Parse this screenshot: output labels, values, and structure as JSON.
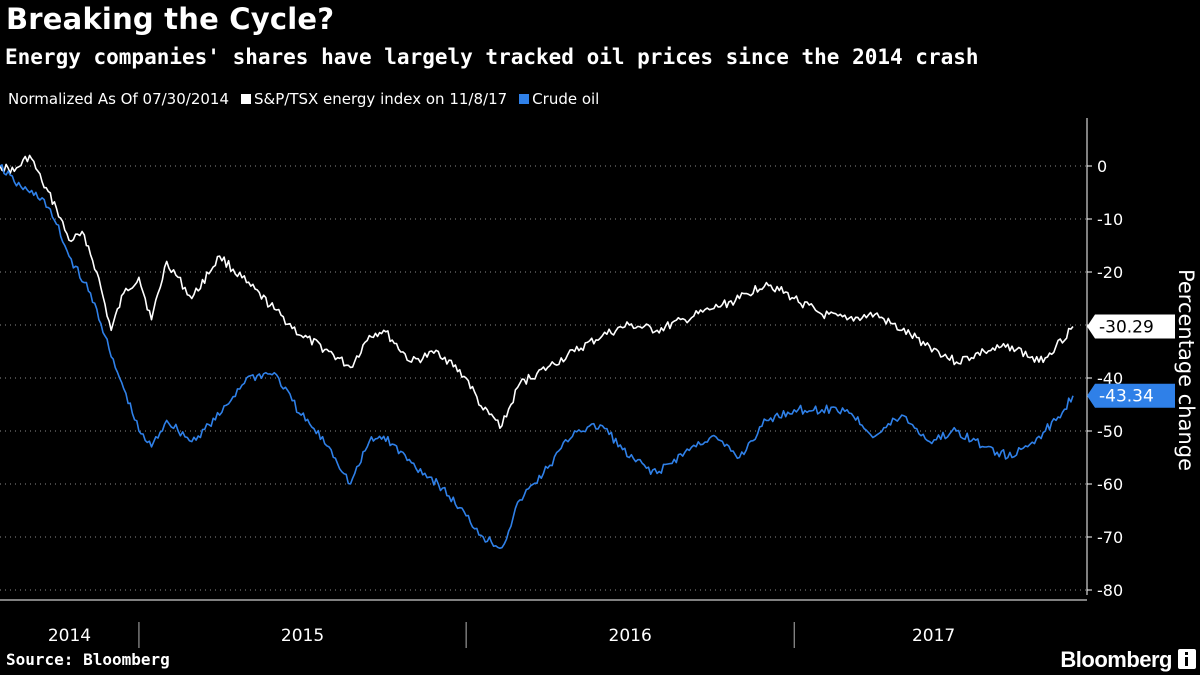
{
  "title": "Breaking the Cycle?",
  "subtitle": "Energy companies' shares have largely tracked oil prices since the 2014 crash",
  "legend": {
    "note": "Normalized As Of 07/30/2014",
    "items": [
      {
        "label": "S&P/TSX energy index on 11/8/17",
        "color": "#ffffff"
      },
      {
        "label": "Crude oil",
        "color": "#2f80e8"
      }
    ]
  },
  "source": "Source: Bloomberg",
  "brand": "Bloomberg",
  "chart_data": {
    "type": "line",
    "ylabel": "Percentage change",
    "ylim": [
      -82,
      5
    ],
    "yticks": [
      0,
      -10,
      -20,
      -30,
      -40,
      -50,
      -60,
      -70,
      -80
    ],
    "xlim": [
      "2014-07-30",
      "2017-11-08"
    ],
    "year_labels": [
      "2014",
      "2015",
      "2016",
      "2017"
    ],
    "series": [
      {
        "name": "S&P/TSX energy index on 11/8/17",
        "color": "#ffffff",
        "last_value_label": "-30.29",
        "x": [
          "2014-07-30",
          "2014-08-15",
          "2014-09-01",
          "2014-09-15",
          "2014-10-01",
          "2014-10-15",
          "2014-11-01",
          "2014-11-15",
          "2014-12-01",
          "2014-12-15",
          "2015-01-01",
          "2015-01-15",
          "2015-02-01",
          "2015-03-01",
          "2015-04-01",
          "2015-05-01",
          "2015-06-01",
          "2015-07-01",
          "2015-08-01",
          "2015-08-25",
          "2015-09-15",
          "2015-10-01",
          "2015-11-01",
          "2015-12-01",
          "2016-01-01",
          "2016-01-20",
          "2016-02-10",
          "2016-03-01",
          "2016-04-01",
          "2016-05-01",
          "2016-06-01",
          "2016-07-01",
          "2016-08-01",
          "2016-09-01",
          "2016-10-01",
          "2016-11-01",
          "2016-12-01",
          "2017-01-01",
          "2017-02-01",
          "2017-03-01",
          "2017-04-01",
          "2017-05-01",
          "2017-06-01",
          "2017-07-01",
          "2017-08-01",
          "2017-09-01",
          "2017-10-01",
          "2017-10-20",
          "2017-11-08"
        ],
        "y": [
          0,
          -1,
          2,
          -3,
          -8,
          -14,
          -13,
          -20,
          -31,
          -24,
          -21,
          -29,
          -18,
          -25,
          -17,
          -22,
          -27,
          -32,
          -35,
          -38,
          -32,
          -31,
          -37,
          -35,
          -40,
          -46,
          -49,
          -41,
          -38,
          -35,
          -32,
          -30,
          -31,
          -29,
          -27,
          -25,
          -22,
          -25,
          -28,
          -29,
          -28,
          -31,
          -34,
          -37,
          -35,
          -34,
          -37,
          -34,
          -30.29
        ]
      },
      {
        "name": "Crude oil",
        "color": "#2f80e8",
        "last_value_label": "-43.34",
        "x": [
          "2014-07-30",
          "2014-08-15",
          "2014-09-01",
          "2014-09-15",
          "2014-10-01",
          "2014-10-15",
          "2014-11-01",
          "2014-11-15",
          "2014-12-01",
          "2014-12-15",
          "2015-01-01",
          "2015-01-15",
          "2015-02-01",
          "2015-03-01",
          "2015-04-01",
          "2015-05-01",
          "2015-06-01",
          "2015-07-01",
          "2015-08-01",
          "2015-08-25",
          "2015-09-15",
          "2015-10-01",
          "2015-11-01",
          "2015-12-01",
          "2016-01-01",
          "2016-01-20",
          "2016-02-10",
          "2016-03-01",
          "2016-04-01",
          "2016-05-01",
          "2016-06-01",
          "2016-07-01",
          "2016-08-01",
          "2016-09-01",
          "2016-10-01",
          "2016-11-01",
          "2016-12-01",
          "2017-01-01",
          "2017-02-01",
          "2017-03-01",
          "2017-04-01",
          "2017-05-01",
          "2017-06-01",
          "2017-07-01",
          "2017-08-01",
          "2017-09-01",
          "2017-10-01",
          "2017-10-20",
          "2017-11-08"
        ],
        "y": [
          0,
          -3,
          -5,
          -6,
          -11,
          -17,
          -22,
          -27,
          -36,
          -42,
          -50,
          -53,
          -48,
          -52,
          -47,
          -40,
          -39,
          -47,
          -53,
          -60,
          -52,
          -51,
          -56,
          -60,
          -66,
          -70,
          -72,
          -63,
          -57,
          -50,
          -49,
          -55,
          -58,
          -54,
          -51,
          -55,
          -48,
          -46,
          -46,
          -46,
          -51,
          -47,
          -52,
          -50,
          -53,
          -55,
          -51,
          -48,
          -43.34
        ]
      }
    ]
  }
}
